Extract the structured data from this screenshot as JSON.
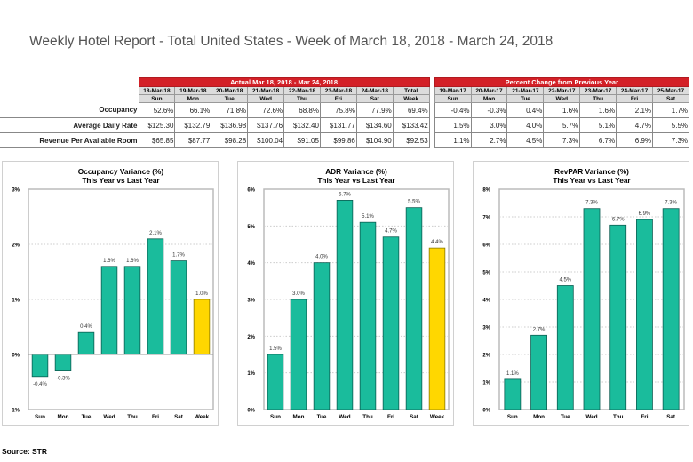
{
  "title": "Weekly Hotel Report - Total United States - Week of March 18, 2018 - March 24, 2018",
  "table": {
    "actual_header": "Actual Mar 18, 2018 - Mar 24, 2018",
    "change_header": "Percent Change from Previous Year",
    "actual_dates": [
      "18-Mar-18",
      "19-Mar-18",
      "20-Mar-18",
      "21-Mar-18",
      "22-Mar-18",
      "23-Mar-18",
      "24-Mar-18",
      "Total"
    ],
    "actual_days": [
      "Sun",
      "Mon",
      "Tue",
      "Wed",
      "Thu",
      "Fri",
      "Sat",
      "Week"
    ],
    "change_dates": [
      "19-Mar-17",
      "20-Mar-17",
      "21-Mar-17",
      "22-Mar-17",
      "23-Mar-17",
      "24-Mar-17",
      "25-Mar-17"
    ],
    "change_days": [
      "Sun",
      "Mon",
      "Tue",
      "Wed",
      "Thu",
      "Fri",
      "Sat"
    ],
    "rows": [
      {
        "label": "Occupancy",
        "actual": [
          "52.6%",
          "66.1%",
          "71.8%",
          "72.6%",
          "68.8%",
          "75.8%",
          "77.9%",
          "69.4%"
        ],
        "change": [
          "-0.4%",
          "-0.3%",
          "0.4%",
          "1.6%",
          "1.6%",
          "2.1%",
          "1.7%"
        ]
      },
      {
        "label": "Average Daily Rate",
        "actual": [
          "$125.30",
          "$132.79",
          "$136.98",
          "$137.76",
          "$132.40",
          "$131.77",
          "$134.60",
          "$133.42"
        ],
        "change": [
          "1.5%",
          "3.0%",
          "4.0%",
          "5.7%",
          "5.1%",
          "4.7%",
          "5.5%"
        ]
      },
      {
        "label": "Revenue Per Available Room",
        "actual": [
          "$65.85",
          "$87.77",
          "$98.28",
          "$100.04",
          "$91.05",
          "$99.86",
          "$104.90",
          "$92.53"
        ],
        "change": [
          "1.1%",
          "2.7%",
          "4.5%",
          "7.3%",
          "6.7%",
          "6.9%",
          "7.3%"
        ]
      }
    ]
  },
  "colors": {
    "bar": "#1abc9c",
    "week_bar": "#ffd700",
    "header_red": "#d32027"
  },
  "chart_data": [
    {
      "type": "bar",
      "title": "Occupancy Variance (%)",
      "subtitle": "This Year vs Last Year",
      "categories": [
        "Sun",
        "Mon",
        "Tue",
        "Wed",
        "Thu",
        "Fri",
        "Sat",
        "Week"
      ],
      "values": [
        -0.4,
        -0.3,
        0.4,
        1.6,
        1.6,
        2.1,
        1.7,
        1.0
      ],
      "labels": [
        "-0.4%",
        "-0.3%",
        "0.4%",
        "1.6%",
        "1.6%",
        "2.1%",
        "1.7%",
        "1.0%"
      ],
      "ylim": [
        -1,
        3
      ],
      "yticks": [
        "-1%",
        "0%",
        "1%",
        "2%",
        "3%"
      ],
      "grid": true
    },
    {
      "type": "bar",
      "title": "ADR Variance (%)",
      "subtitle": "This Year vs Last Year",
      "categories": [
        "Sun",
        "Mon",
        "Tue",
        "Wed",
        "Thu",
        "Fri",
        "Sat",
        "Week"
      ],
      "values": [
        1.5,
        3.0,
        4.0,
        5.7,
        5.1,
        4.7,
        5.5,
        4.4
      ],
      "labels": [
        "1.5%",
        "3.0%",
        "4.0%",
        "5.7%",
        "5.1%",
        "4.7%",
        "5.5%",
        "4.4%"
      ],
      "ylim": [
        0,
        6
      ],
      "yticks": [
        "0%",
        "1%",
        "2%",
        "3%",
        "4%",
        "5%",
        "6%"
      ],
      "grid": true
    },
    {
      "type": "bar",
      "title": "RevPAR Variance (%)",
      "subtitle": "This Year vs Last Year",
      "categories": [
        "Sun",
        "Mon",
        "Tue",
        "Wed",
        "Thu",
        "Fri",
        "Sat"
      ],
      "values": [
        1.1,
        2.7,
        4.5,
        7.3,
        6.7,
        6.9,
        7.3
      ],
      "labels": [
        "1.1%",
        "2.7%",
        "4.5%",
        "7.3%",
        "6.7%",
        "6.9%",
        "7.3%"
      ],
      "ylim": [
        0,
        8
      ],
      "yticks": [
        "0%",
        "1%",
        "2%",
        "3%",
        "4%",
        "5%",
        "6%",
        "7%",
        "8%"
      ],
      "grid": true
    }
  ],
  "source": "Source: STR"
}
